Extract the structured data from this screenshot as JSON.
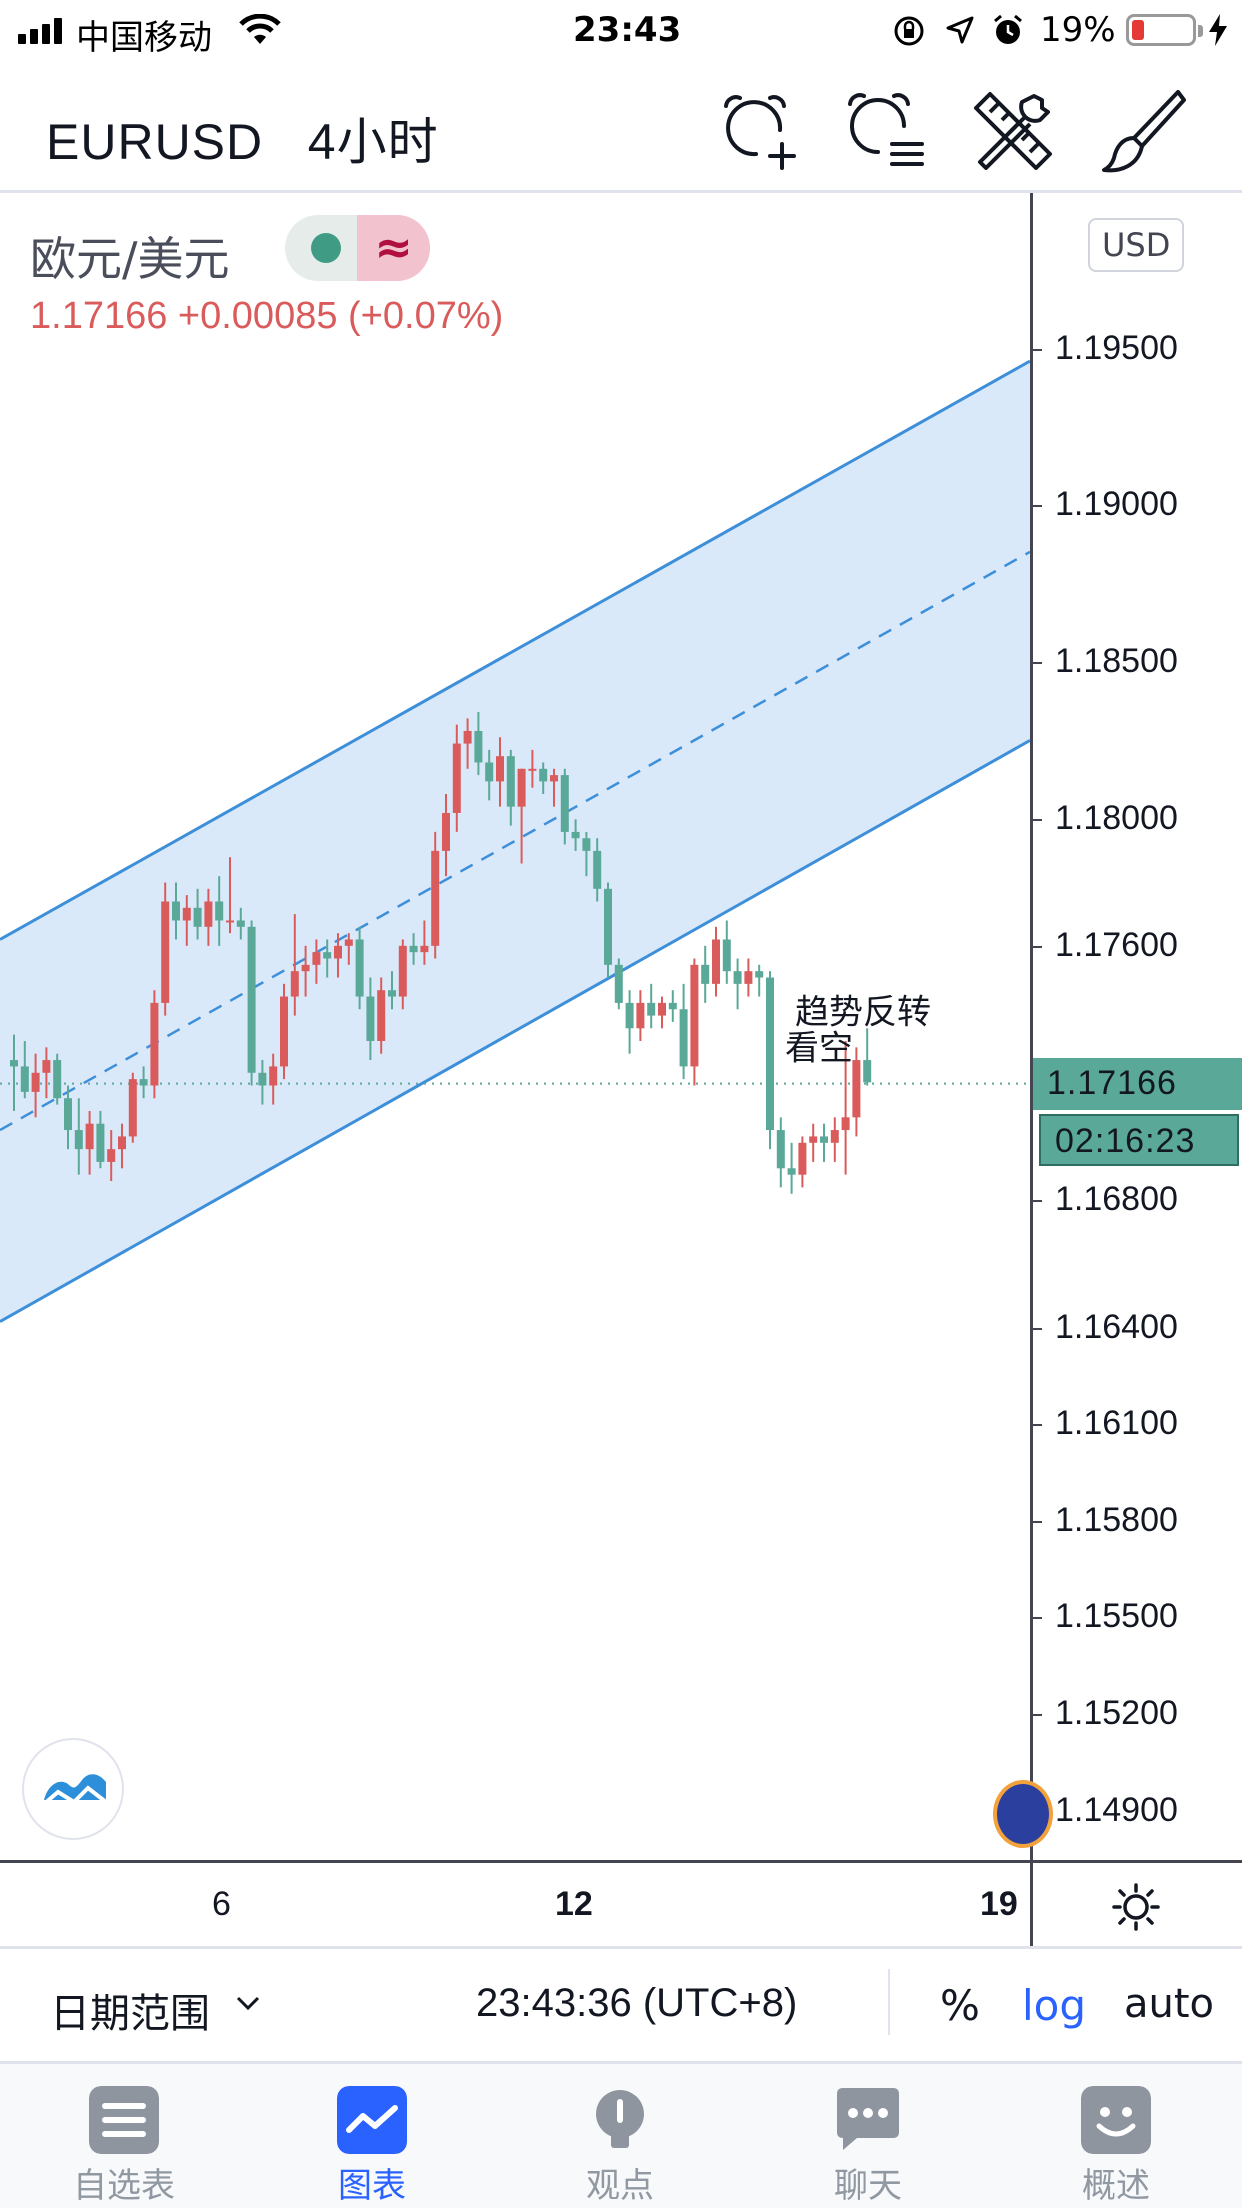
{
  "status_bar": {
    "carrier": "中国移动",
    "time": "23:43",
    "battery": "19%"
  },
  "header": {
    "symbol": "EURUSD",
    "interval": "4小时",
    "title": "EURUSD   4小时",
    "icons": [
      "alarm-add-icon",
      "alarm-list-icon",
      "tools-icon",
      "brush-icon"
    ]
  },
  "legend": {
    "pair_name": "欧元/美元",
    "price_change": "1.17166  +0.00085 (+0.07%)"
  },
  "price_axis": {
    "currency": "USD",
    "ticks": [
      "1.19500",
      "1.19000",
      "1.18500",
      "1.18000",
      "1.17600",
      "1.16800",
      "1.16400",
      "1.16100",
      "1.15800",
      "1.15500",
      "1.15200",
      "1.14900"
    ],
    "last_price": "1.17166",
    "countdown": "02:16:23",
    "scale": "log"
  },
  "time_axis": {
    "labels": [
      "6",
      "12",
      "19"
    ]
  },
  "annotation": {
    "line1": "趋势反转",
    "line2": "看空"
  },
  "bottom_toolbar": {
    "date_range": "日期范围",
    "session_time": "23:43:36 (UTC+8)",
    "percent": "%",
    "log": "log",
    "auto": "auto"
  },
  "tabs": [
    {
      "label": "自选表",
      "icon": "watchlist-icon",
      "active": false
    },
    {
      "label": "图表",
      "icon": "chart-icon",
      "active": true
    },
    {
      "label": "观点",
      "icon": "ideas-icon",
      "active": false
    },
    {
      "label": "聊天",
      "icon": "chat-icon",
      "active": false
    },
    {
      "label": "概述",
      "icon": "overview-icon",
      "active": false
    }
  ],
  "colors": {
    "up": "#d95b5b",
    "down": "#5aa898",
    "channel": "#3d8fd9",
    "channel_fill": "#d6e7f8",
    "accent": "#2962ff"
  },
  "chart_data": {
    "type": "candlestick",
    "symbol": "EURUSD",
    "interval": "4h",
    "x_labels": [
      "6",
      "12",
      "19"
    ],
    "y_range": [
      1.1475,
      1.2
    ],
    "last_price": 1.17166,
    "candles": [
      [
        1.1724,
        1.1732,
        1.1708,
        1.1722
      ],
      [
        1.1722,
        1.173,
        1.1712,
        1.1714
      ],
      [
        1.1714,
        1.1726,
        1.1706,
        1.172
      ],
      [
        1.172,
        1.1728,
        1.1712,
        1.1724
      ],
      [
        1.1724,
        1.1726,
        1.171,
        1.1712
      ],
      [
        1.1712,
        1.1716,
        1.1696,
        1.1702
      ],
      [
        1.1702,
        1.1712,
        1.1688,
        1.1696
      ],
      [
        1.1696,
        1.1708,
        1.1688,
        1.1704
      ],
      [
        1.1704,
        1.1708,
        1.169,
        1.1692
      ],
      [
        1.1692,
        1.1702,
        1.1686,
        1.1696
      ],
      [
        1.1696,
        1.1704,
        1.169,
        1.17
      ],
      [
        1.17,
        1.172,
        1.1698,
        1.1718
      ],
      [
        1.1718,
        1.1722,
        1.1712,
        1.1716
      ],
      [
        1.1716,
        1.1746,
        1.1712,
        1.1742
      ],
      [
        1.1742,
        1.178,
        1.1738,
        1.1774
      ],
      [
        1.1774,
        1.178,
        1.1762,
        1.1768
      ],
      [
        1.1768,
        1.1776,
        1.176,
        1.1772
      ],
      [
        1.1772,
        1.1778,
        1.1762,
        1.1766
      ],
      [
        1.1766,
        1.1778,
        1.176,
        1.1774
      ],
      [
        1.1774,
        1.1782,
        1.176,
        1.1768
      ],
      [
        1.1768,
        1.1788,
        1.1764,
        1.1768
      ],
      [
        1.1768,
        1.1772,
        1.1762,
        1.1766
      ],
      [
        1.1766,
        1.1768,
        1.1716,
        1.172
      ],
      [
        1.172,
        1.1724,
        1.171,
        1.1716
      ],
      [
        1.1716,
        1.1726,
        1.171,
        1.1722
      ],
      [
        1.1722,
        1.1748,
        1.1718,
        1.1744
      ],
      [
        1.1744,
        1.177,
        1.1738,
        1.1752
      ],
      [
        1.1752,
        1.176,
        1.1744,
        1.1754
      ],
      [
        1.1754,
        1.1762,
        1.1748,
        1.1758
      ],
      [
        1.1758,
        1.1762,
        1.175,
        1.1756
      ],
      [
        1.1756,
        1.1764,
        1.175,
        1.176
      ],
      [
        1.176,
        1.1764,
        1.1754,
        1.1762
      ],
      [
        1.1762,
        1.1766,
        1.174,
        1.1744
      ],
      [
        1.1744,
        1.175,
        1.1724,
        1.173
      ],
      [
        1.173,
        1.175,
        1.1726,
        1.1746
      ],
      [
        1.1746,
        1.1752,
        1.174,
        1.1744
      ],
      [
        1.1744,
        1.1762,
        1.174,
        1.176
      ],
      [
        1.176,
        1.1764,
        1.1754,
        1.1758
      ],
      [
        1.1758,
        1.1768,
        1.1754,
        1.176
      ],
      [
        1.176,
        1.1796,
        1.1756,
        1.179
      ],
      [
        1.179,
        1.1808,
        1.1782,
        1.1802
      ],
      [
        1.1802,
        1.183,
        1.1796,
        1.1824
      ],
      [
        1.1824,
        1.1832,
        1.1816,
        1.1828
      ],
      [
        1.1828,
        1.1834,
        1.1814,
        1.1818
      ],
      [
        1.1818,
        1.1822,
        1.1806,
        1.1812
      ],
      [
        1.1812,
        1.1826,
        1.1804,
        1.182
      ],
      [
        1.182,
        1.1822,
        1.1798,
        1.1804
      ],
      [
        1.1804,
        1.1816,
        1.1786,
        1.1816
      ],
      [
        1.1816,
        1.1822,
        1.181,
        1.1816
      ],
      [
        1.1816,
        1.1818,
        1.1808,
        1.1812
      ],
      [
        1.1812,
        1.1816,
        1.1804,
        1.1814
      ],
      [
        1.1814,
        1.1816,
        1.1792,
        1.1796
      ],
      [
        1.1796,
        1.18,
        1.179,
        1.1794
      ],
      [
        1.1794,
        1.1796,
        1.1782,
        1.179
      ],
      [
        1.179,
        1.1794,
        1.1774,
        1.1778
      ],
      [
        1.1778,
        1.178,
        1.175,
        1.1754
      ],
      [
        1.1754,
        1.1756,
        1.174,
        1.1742
      ],
      [
        1.1742,
        1.1746,
        1.1726,
        1.1734
      ],
      [
        1.1734,
        1.1746,
        1.173,
        1.1742
      ],
      [
        1.1742,
        1.1748,
        1.1734,
        1.1738
      ],
      [
        1.1738,
        1.1744,
        1.1734,
        1.1742
      ],
      [
        1.1742,
        1.1746,
        1.1736,
        1.174
      ],
      [
        1.174,
        1.1748,
        1.1718,
        1.1722
      ],
      [
        1.1722,
        1.1756,
        1.1716,
        1.1754
      ],
      [
        1.1754,
        1.176,
        1.1742,
        1.1748
      ],
      [
        1.1748,
        1.1766,
        1.1744,
        1.1762
      ],
      [
        1.1762,
        1.1768,
        1.1748,
        1.1752
      ],
      [
        1.1752,
        1.1756,
        1.174,
        1.1748
      ],
      [
        1.1748,
        1.1756,
        1.1744,
        1.1752
      ],
      [
        1.1752,
        1.1754,
        1.1744,
        1.175
      ],
      [
        1.175,
        1.1752,
        1.1696,
        1.1702
      ],
      [
        1.1702,
        1.1706,
        1.1684,
        1.169
      ],
      [
        1.169,
        1.1698,
        1.1682,
        1.1688
      ],
      [
        1.1688,
        1.17,
        1.1684,
        1.1698
      ],
      [
        1.1698,
        1.1704,
        1.1692,
        1.17
      ],
      [
        1.17,
        1.1704,
        1.1692,
        1.1698
      ],
      [
        1.1698,
        1.1706,
        1.1692,
        1.1702
      ],
      [
        1.1702,
        1.173,
        1.1688,
        1.1706
      ],
      [
        1.1706,
        1.1728,
        1.17,
        1.1724
      ],
      [
        1.1724,
        1.1734,
        1.1716,
        1.1717
      ]
    ],
    "channel": {
      "upper": {
        "from": 1.1762,
        "to": 1.1946
      },
      "middle": {
        "from": 1.1702,
        "to": 1.1885
      },
      "lower": {
        "from": 1.1642,
        "to": 1.1825
      }
    }
  }
}
